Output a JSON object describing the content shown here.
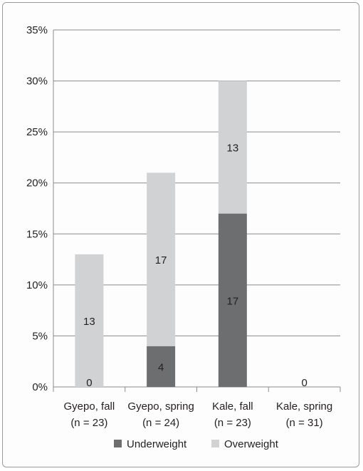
{
  "chart_data": {
    "type": "bar",
    "stacked": true,
    "categories": [
      "Gyepo, fall",
      "Gyepo, spring",
      "Kale, fall",
      "Kale, spring"
    ],
    "category_sublabels": [
      "(n = 23)",
      "(n = 24)",
      "(n = 23)",
      "(n = 31)"
    ],
    "ylim": [
      0,
      35
    ],
    "yticks": [
      0,
      5,
      10,
      15,
      20,
      25,
      30,
      35
    ],
    "ytick_labels": [
      "0%",
      "5%",
      "10%",
      "15%",
      "20%",
      "25%",
      "30%",
      "35%"
    ],
    "grid": "horizontal",
    "legend_position": "bottom",
    "series": [
      {
        "name": "Underweight",
        "color": "#6d6e70",
        "values": [
          0,
          4,
          17,
          0
        ],
        "labels": [
          "0",
          "4",
          "17",
          "0"
        ]
      },
      {
        "name": "Overweight",
        "color": "#d1d2d4",
        "values": [
          13,
          17,
          13,
          0
        ],
        "labels": [
          "13",
          "17",
          "13",
          ""
        ]
      }
    ]
  }
}
